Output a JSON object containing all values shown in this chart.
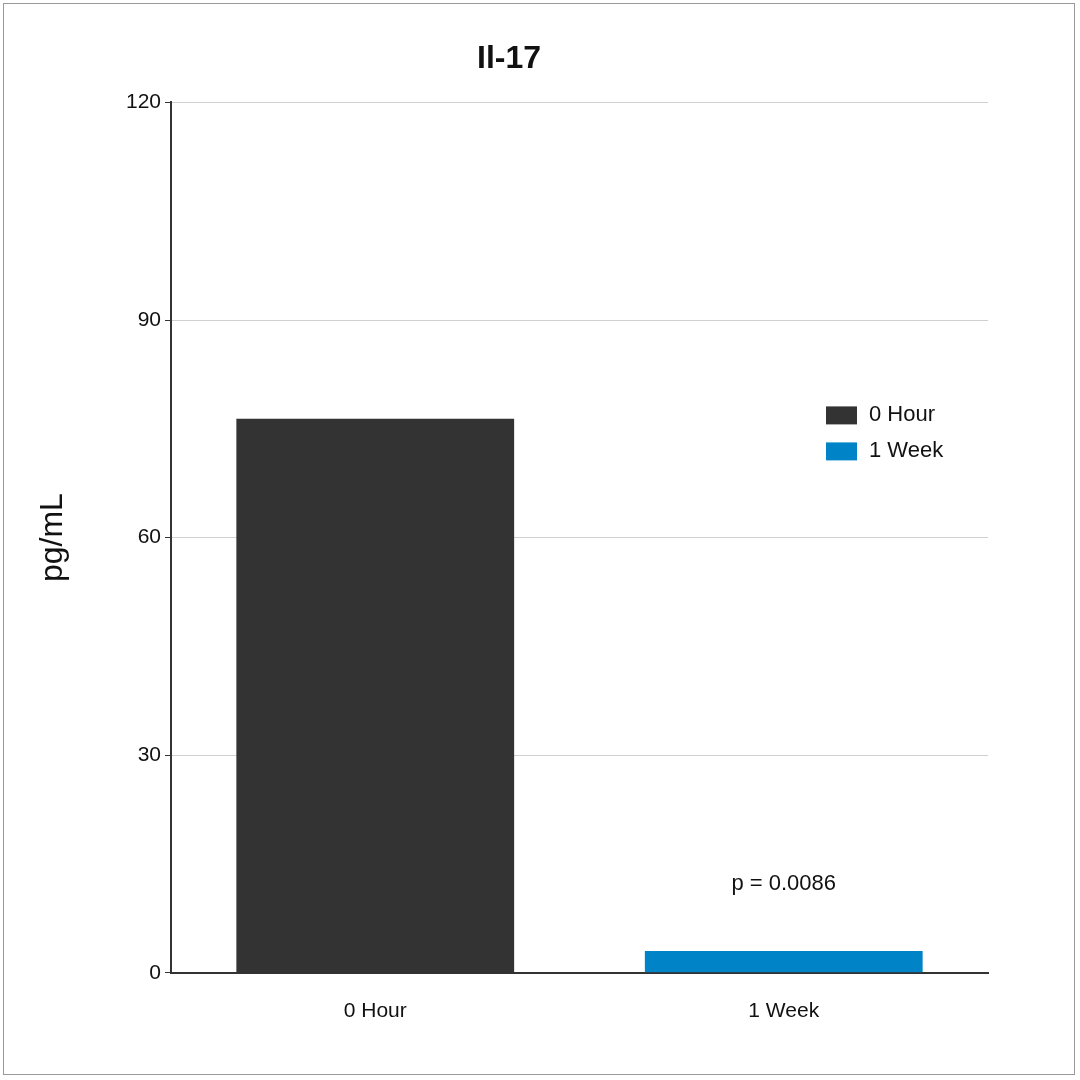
{
  "chart_data": {
    "type": "bar",
    "title": "Il-17",
    "ylabel": "pg/mL",
    "categories": [
      "0 Hour",
      "1 Week"
    ],
    "series": [
      {
        "name": "0 Hour",
        "color": "#333333",
        "values": [
          76.4,
          null
        ]
      },
      {
        "name": "1 Week",
        "color": "#0084c7",
        "values": [
          null,
          3.0
        ]
      }
    ],
    "ylim": [
      0,
      120
    ],
    "yticks": [
      0,
      30,
      60,
      90,
      120
    ],
    "grid": "y",
    "legend": "right",
    "annotations": [
      "p = 0.0086"
    ]
  }
}
